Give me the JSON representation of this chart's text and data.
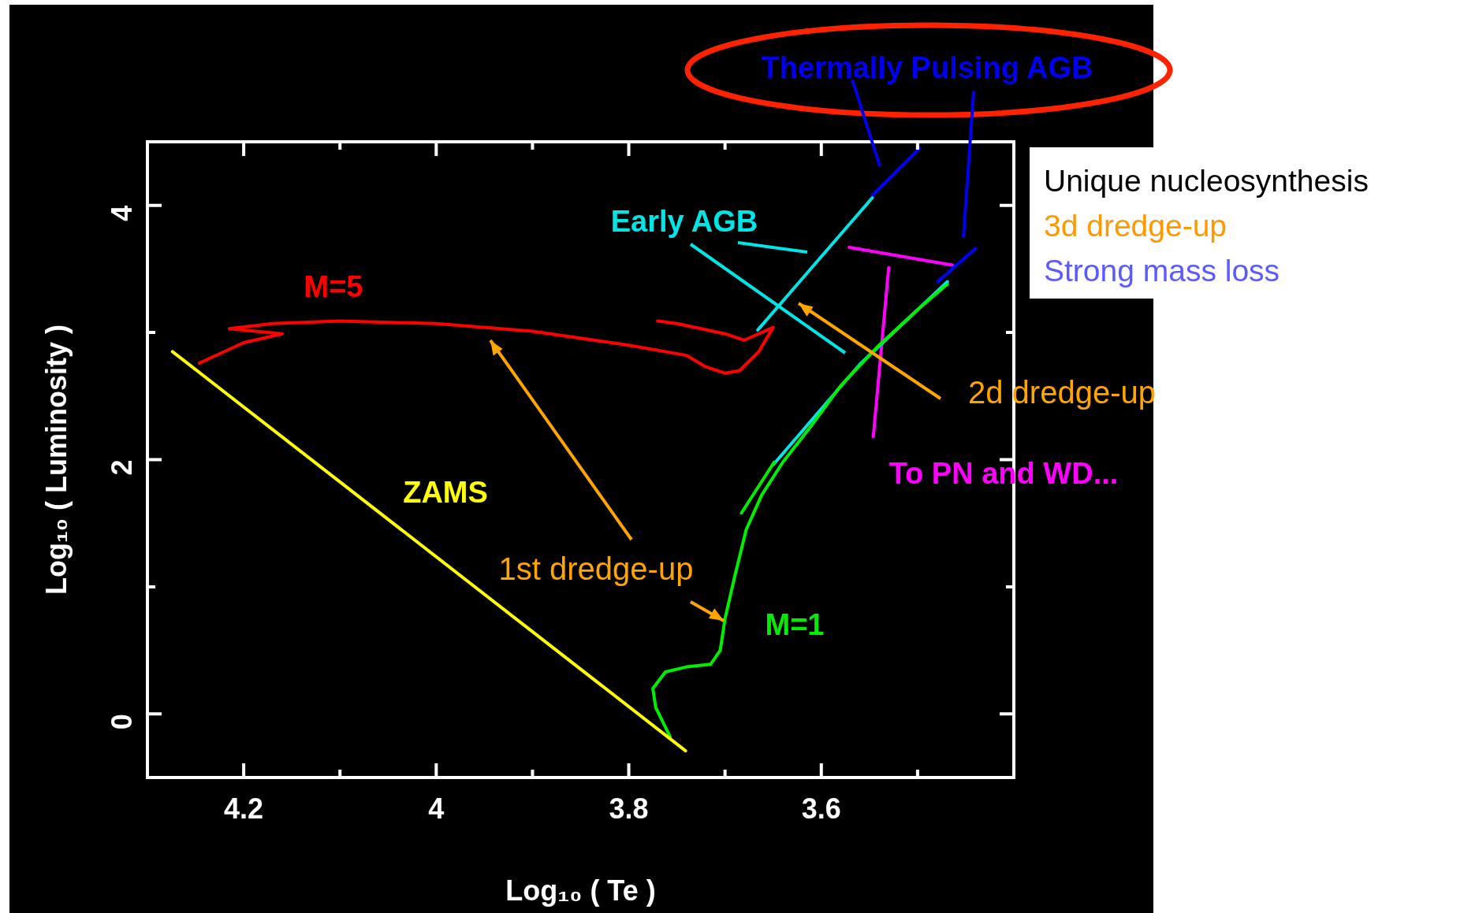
{
  "chart_data": {
    "type": "line",
    "xlabel": "Log₁₀ ( Te )",
    "ylabel": "Log₁₀ ( Luminosity )",
    "xlim": [
      4.3,
      3.4
    ],
    "ylim": [
      -0.5,
      4.5
    ],
    "xticks": [
      4.2,
      {
        "value": 4.1,
        "label": null
      },
      4,
      {
        "value": 3.9,
        "label": null
      },
      3.8,
      {
        "value": 3.7,
        "label": null
      },
      3.6,
      {
        "value": 3.5,
        "label": null
      }
    ],
    "yticks": [
      0,
      {
        "value": 1,
        "label": null
      },
      2,
      {
        "value": 3,
        "label": null
      },
      4
    ],
    "grid": false,
    "legend": false,
    "marker": "none",
    "line_style": "solid",
    "series": [
      {
        "name": "ZAMS",
        "color": "#ffff00",
        "x": [
          4.274,
          3.741
        ],
        "values": [
          2.85,
          -0.29
        ]
      },
      {
        "name": "M=5",
        "color": "#ff0000",
        "x": [
          4.246,
          4.2,
          4.16,
          4.215,
          4.17,
          4.1,
          4.0,
          3.9,
          3.8,
          3.74,
          3.72,
          3.7,
          3.685,
          3.665,
          3.65,
          3.68,
          3.7,
          3.75,
          3.77
        ],
        "values": [
          2.76,
          2.92,
          2.99,
          3.03,
          3.07,
          3.09,
          3.07,
          3.01,
          2.9,
          2.82,
          2.73,
          2.68,
          2.7,
          2.85,
          3.04,
          2.94,
          2.99,
          3.07,
          3.09
        ]
      },
      {
        "name": "M=1",
        "color": "#00ee00",
        "x": [
          3.757,
          3.772,
          3.775,
          3.762,
          3.74,
          3.715,
          3.705,
          3.7,
          3.69,
          3.678,
          3.662,
          3.64,
          3.61,
          3.58,
          3.54,
          3.5,
          3.469,
          3.66,
          3.683,
          3.649
        ],
        "values": [
          -0.18,
          0.05,
          0.2,
          0.33,
          0.37,
          0.39,
          0.5,
          0.75,
          1.08,
          1.45,
          1.72,
          1.98,
          2.27,
          2.58,
          2.9,
          3.18,
          3.38,
          null,
          1.58,
          1.98
        ]
      },
      {
        "color": "#00e5e5",
        "x": [
          3.65,
          3.56,
          3.469,
          3.56,
          3.666,
          3.547
        ],
        "values": [
          1.96,
          2.75,
          3.4,
          null,
          3.02,
          4.06
        ]
      },
      {
        "color": "#0000ff",
        "x": [
          3.547,
          3.498,
          3.49,
          3.479,
          3.44
        ],
        "values": [
          4.08,
          4.45,
          null,
          3.4,
          3.66
        ]
      },
      {
        "name": "To PN and WD...",
        "color": "#ff00ff",
        "x": [
          3.571,
          3.464,
          3.5,
          3.53,
          3.546
        ],
        "values": [
          3.67,
          3.53,
          null,
          3.51,
          2.18
        ]
      }
    ],
    "annotations": [
      "Thermally Pulsing AGB",
      "Early AGB",
      "1st dredge-up",
      "2d dredge-up",
      "Unique nucleosynthesis",
      "3d dredge-up",
      "Strong mass loss"
    ]
  }
}
